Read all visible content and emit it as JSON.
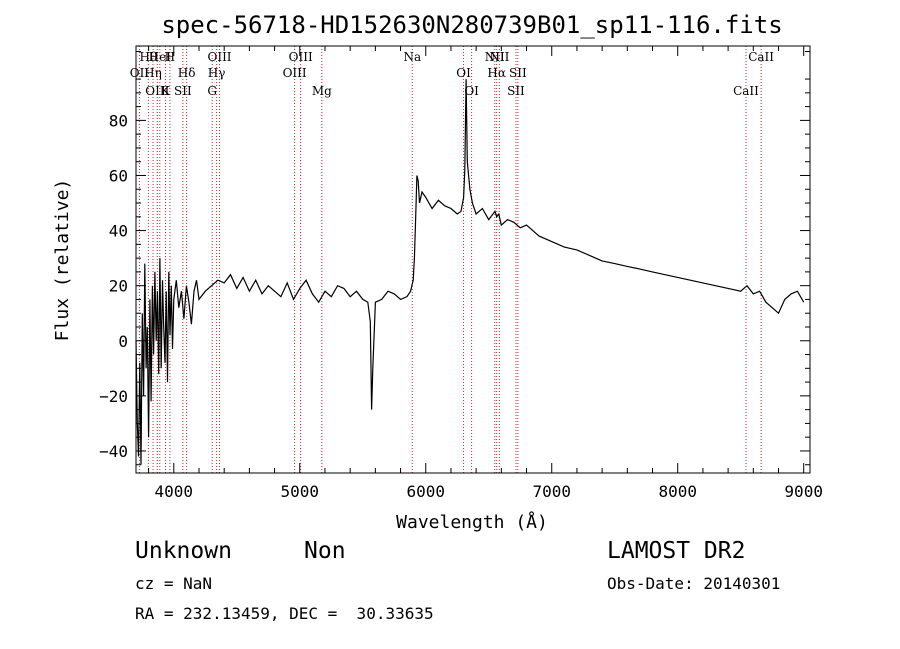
{
  "chart_data": {
    "type": "line",
    "title": "spec-56718-HD152630N280739B01_sp11-116.fits",
    "xlabel": "Wavelength (Å)",
    "ylabel": "Flux (relative)",
    "xlim": [
      3700,
      9050
    ],
    "ylim": [
      -48,
      107
    ],
    "xticks": [
      4000,
      5000,
      6000,
      7000,
      8000,
      9000
    ],
    "yticks": [
      -40,
      -20,
      0,
      20,
      40,
      60,
      80
    ],
    "grid": false,
    "line_color": "#000000",
    "marker_color": "#b03030",
    "series": [
      {
        "x": [
          3700,
          3710,
          3720,
          3730,
          3740,
          3750,
          3760,
          3770,
          3780,
          3790,
          3800,
          3810,
          3820,
          3830,
          3840,
          3850,
          3860,
          3870,
          3880,
          3890,
          3900,
          3910,
          3920,
          3930,
          3940,
          3950,
          3960,
          3970,
          3980,
          3990,
          4000,
          4020,
          4040,
          4060,
          4080,
          4100,
          4120,
          4140,
          4160,
          4180,
          4200,
          4250,
          4300,
          4350,
          4400,
          4450,
          4500,
          4550,
          4600,
          4650,
          4700,
          4750,
          4800,
          4850,
          4900,
          4950,
          5000,
          5050,
          5100,
          5150,
          5200,
          5250,
          5300,
          5350,
          5400,
          5450,
          5500,
          5540,
          5560,
          5570,
          5580,
          5600,
          5650,
          5700,
          5750,
          5800,
          5850,
          5880,
          5900,
          5910,
          5920,
          5930,
          5940,
          5950,
          5970,
          6000,
          6050,
          6100,
          6150,
          6200,
          6250,
          6280,
          6300,
          6310,
          6320,
          6330,
          6350,
          6370,
          6400,
          6450,
          6500,
          6550,
          6563,
          6580,
          6600,
          6650,
          6700,
          6750,
          6800,
          6850,
          6900,
          6950,
          7000,
          7100,
          7200,
          7300,
          7400,
          7500,
          7600,
          7700,
          7800,
          7900,
          8000,
          8100,
          8200,
          8300,
          8400,
          8500,
          8550,
          8600,
          8650,
          8700,
          8750,
          8800,
          8850,
          8900,
          8950,
          9000
        ],
        "y": [
          0,
          -30,
          -42,
          -8,
          -45,
          10,
          -20,
          28,
          -10,
          5,
          -35,
          15,
          -22,
          20,
          -5,
          25,
          0,
          18,
          -12,
          30,
          -10,
          22,
          5,
          -8,
          18,
          -15,
          25,
          2,
          20,
          -3,
          15,
          22,
          12,
          18,
          8,
          20,
          14,
          6,
          18,
          22,
          15,
          18,
          20,
          22,
          21,
          24,
          19,
          23,
          18,
          22,
          17,
          20,
          18,
          16,
          21,
          15,
          19,
          22,
          17,
          14,
          18,
          16,
          20,
          19,
          16,
          18,
          15,
          14,
          7,
          -25,
          -10,
          14,
          15,
          18,
          17,
          15,
          16,
          18,
          22,
          30,
          45,
          60,
          58,
          50,
          54,
          52,
          48,
          51,
          49,
          48,
          46,
          47,
          52,
          62,
          95,
          65,
          55,
          50,
          46,
          48,
          44,
          47,
          45,
          46,
          42,
          44,
          43,
          41,
          42,
          40,
          38,
          37,
          36,
          34,
          33,
          31,
          29,
          28,
          27,
          26,
          25,
          24,
          23,
          22,
          21,
          20,
          19,
          18,
          20,
          17,
          18,
          14,
          12,
          10,
          15,
          17,
          18,
          14
        ]
      }
    ],
    "lines": [
      {
        "label": "Hθ",
        "wavelength": 3798
      },
      {
        "label": "OII",
        "wavelength": 3727
      },
      {
        "label": "OIII",
        "wavelength": 3869
      },
      {
        "label": "HeI",
        "wavelength": 3889
      },
      {
        "label": "Hη",
        "wavelength": 3835
      },
      {
        "label": "K",
        "wavelength": 3934
      },
      {
        "label": "H",
        "wavelength": 3969
      },
      {
        "label": "Hδ",
        "wavelength": 4102
      },
      {
        "label": "SII",
        "wavelength": 4072
      },
      {
        "label": "OIII",
        "wavelength": 4363
      },
      {
        "label": "Hγ",
        "wavelength": 4340
      },
      {
        "label": "G",
        "wavelength": 4305
      },
      {
        "label": "OIII",
        "wavelength": 5007
      },
      {
        "label": "OIII",
        "wavelength": 4959
      },
      {
        "label": "Mg",
        "wavelength": 5175
      },
      {
        "label": "Na",
        "wavelength": 5893
      },
      {
        "label": "OI",
        "wavelength": 6300
      },
      {
        "label": "OI",
        "wavelength": 6364
      },
      {
        "label": "NII",
        "wavelength": 6584
      },
      {
        "label": "Hα",
        "wavelength": 6563
      },
      {
        "label": "SII",
        "wavelength": 6716
      },
      {
        "label": "NII",
        "wavelength": 6548
      },
      {
        "label": "SII",
        "wavelength": 6731
      },
      {
        "label": "CaII",
        "wavelength": 8542
      },
      {
        "label": "CaII",
        "wavelength": 8662
      }
    ]
  },
  "info": {
    "class": "Unknown",
    "subclass": "Non",
    "survey": "LAMOST DR2",
    "cz": "cz = NaN",
    "obs_date": "Obs-Date: 20140301",
    "coords": "RA = 232.13459, DEC =  30.33635"
  }
}
